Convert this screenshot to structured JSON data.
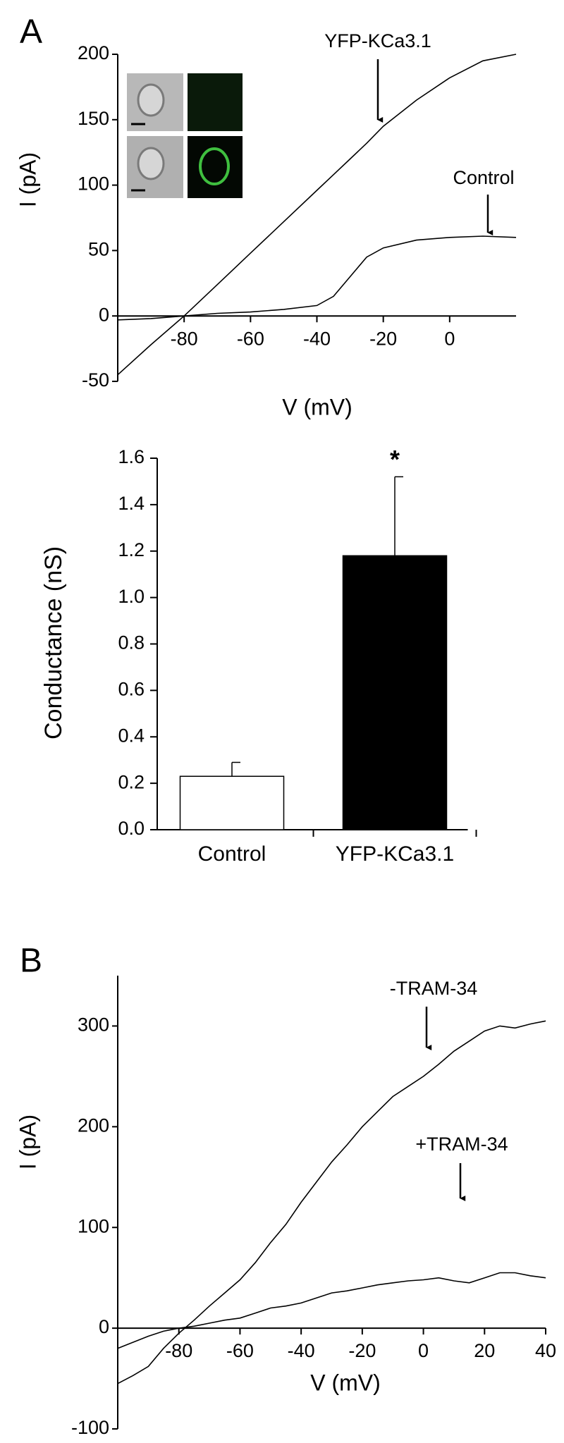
{
  "chart_data": [
    {
      "type": "line",
      "panel_label": "A",
      "xlabel": "V (mV)",
      "ylabel": "I (pA)",
      "xlim": [
        -100,
        20
      ],
      "ylim": [
        -50,
        200
      ],
      "xticks": [
        -80,
        -60,
        -40,
        -20,
        0
      ],
      "yticks": [
        -50,
        0,
        50,
        100,
        150,
        200
      ],
      "x": [
        -100,
        -90,
        -80,
        -70,
        -60,
        -50,
        -40,
        -35,
        -30,
        -25,
        -20,
        -10,
        0,
        10,
        20
      ],
      "series": [
        {
          "name": "YFP-KCa3.1",
          "color": "#000000",
          "values": [
            -45,
            -22,
            0,
            24,
            48,
            72,
            96,
            108,
            120,
            132,
            145,
            165,
            182,
            195,
            200
          ]
        },
        {
          "name": "Control",
          "color": "#000000",
          "values": [
            -3,
            -2,
            0,
            2,
            3,
            5,
            8,
            15,
            30,
            45,
            52,
            58,
            60,
            61,
            60
          ]
        }
      ]
    },
    {
      "type": "bar",
      "ylabel": "Conductance (nS)",
      "categories": [
        "Control",
        "YFP-KCa3.1"
      ],
      "values": [
        0.23,
        1.18
      ],
      "errors": [
        0.06,
        0.34
      ],
      "colors": [
        "#ffffff",
        "#000000"
      ],
      "annotations": [
        "*"
      ],
      "ylim": [
        0,
        1.6
      ],
      "yticks": [
        {
          "value": 0,
          "label": "0.0"
        },
        0.2,
        0.4,
        0.6,
        0.8,
        {
          "value": 1,
          "label": "1.0"
        },
        1.2,
        1.4,
        1.6
      ]
    },
    {
      "type": "line",
      "panel_label": "B",
      "xlabel": "V (mV)",
      "ylabel": "I (pA)",
      "xlim": [
        -100,
        40
      ],
      "ylim": [
        -100,
        350
      ],
      "xticks": [
        -80,
        -60,
        -40,
        -20,
        0,
        20,
        40
      ],
      "yticks": [
        -100,
        0,
        100,
        200,
        300
      ],
      "x": [
        -100,
        -95,
        -90,
        -85,
        -80,
        -75,
        -70,
        -65,
        -60,
        -55,
        -50,
        -45,
        -40,
        -35,
        -30,
        -25,
        -20,
        -15,
        -10,
        -5,
        0,
        5,
        10,
        15,
        20,
        25,
        30,
        35,
        40
      ],
      "series": [
        {
          "name": "-TRAM-34",
          "color": "#000000",
          "values": [
            -55,
            -47,
            -38,
            -20,
            -5,
            8,
            22,
            35,
            48,
            65,
            85,
            103,
            125,
            145,
            165,
            182,
            200,
            215,
            230,
            240,
            250,
            262,
            275,
            285,
            295,
            300,
            298,
            302,
            305
          ]
        },
        {
          "name": "+TRAM-34",
          "color": "#000000",
          "values": [
            -20,
            -14,
            -8,
            -3,
            0,
            2,
            5,
            8,
            10,
            15,
            20,
            22,
            25,
            30,
            35,
            37,
            40,
            43,
            45,
            47,
            48,
            50,
            47,
            45,
            50,
            55,
            55,
            52,
            50
          ]
        }
      ]
    }
  ]
}
